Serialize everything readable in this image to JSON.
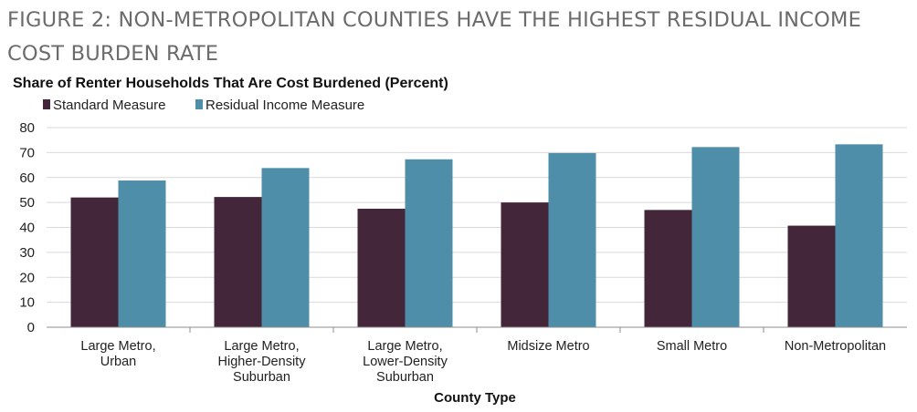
{
  "figure_title": "FIGURE 2: NON-METROPOLITAN COUNTIES HAVE THE HIGHEST RESIDUAL INCOME COST BURDEN RATE",
  "colors": {
    "standard": "#43263a",
    "residual": "#4f8ea8",
    "grid": "#d9d9d9",
    "axis": "#8c8c8c"
  },
  "chart_data": {
    "type": "bar",
    "title": "Share of Renter Households That Are Cost Burdened (Percent)",
    "xlabel": "County Type",
    "ylabel": "",
    "ylim": [
      0,
      80
    ],
    "yticks": [
      0,
      10,
      20,
      30,
      40,
      50,
      60,
      70,
      80
    ],
    "grid": true,
    "legend_position": "top-left",
    "categories": [
      [
        "Large Metro,",
        "Urban"
      ],
      [
        "Large Metro,",
        "Higher-Density",
        "Suburban"
      ],
      [
        "Large Metro,",
        "Lower-Density",
        "Suburban"
      ],
      [
        "Midsize Metro"
      ],
      [
        "Small Metro"
      ],
      [
        "Non-Metropolitan"
      ]
    ],
    "series": [
      {
        "name": "Standard Measure",
        "values": [
          52,
          52.2,
          47.5,
          50,
          47,
          40.7
        ]
      },
      {
        "name": "Residual Income Measure",
        "values": [
          58.8,
          63.8,
          67.3,
          69.8,
          72.2,
          73.3
        ]
      }
    ]
  }
}
